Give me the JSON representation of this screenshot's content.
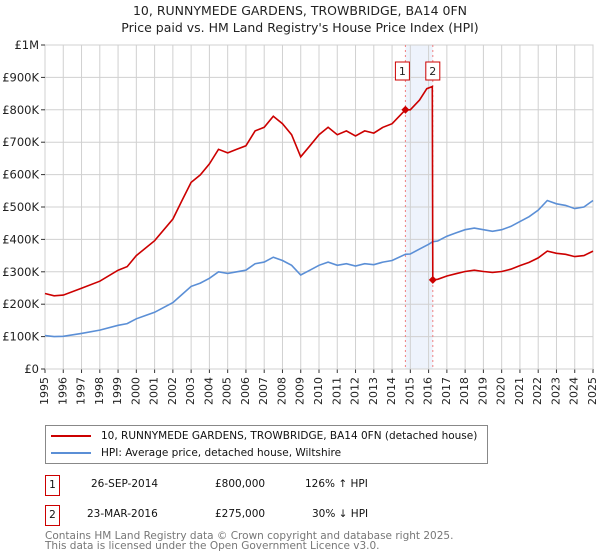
{
  "header": {
    "title_line1": "10, RUNNYMEDE GARDENS, TROWBRIDGE, BA14 0FN",
    "title_line2": "Price paid vs. HM Land Registry's House Price Index (HPI)"
  },
  "chart_data": {
    "type": "line",
    "title": "Price paid vs. HM Land Registry's House Price Index (HPI)",
    "xlim": [
      1995,
      2025
    ],
    "ylim": [
      0,
      1000000
    ],
    "x_ticks": [
      "1995",
      "1996",
      "1997",
      "1998",
      "1999",
      "2000",
      "2001",
      "2002",
      "2003",
      "2004",
      "2005",
      "2006",
      "2007",
      "2008",
      "2009",
      "2010",
      "2011",
      "2012",
      "2013",
      "2014",
      "2015",
      "2016",
      "2017",
      "2018",
      "2019",
      "2020",
      "2021",
      "2022",
      "2023",
      "2024",
      "2025"
    ],
    "y_ticks": [
      {
        "v": 0,
        "label": "£0"
      },
      {
        "v": 100000,
        "label": "£100K"
      },
      {
        "v": 200000,
        "label": "£200K"
      },
      {
        "v": 300000,
        "label": "£300K"
      },
      {
        "v": 400000,
        "label": "£400K"
      },
      {
        "v": 500000,
        "label": "£500K"
      },
      {
        "v": 600000,
        "label": "£600K"
      },
      {
        "v": 700000,
        "label": "£700K"
      },
      {
        "v": 800000,
        "label": "£800K"
      },
      {
        "v": 900000,
        "label": "£900K"
      },
      {
        "v": 1000000,
        "label": "£1M"
      }
    ],
    "grid": true,
    "series": [
      {
        "name": "10, RUNNYMEDE GARDENS, TROWBRIDGE, BA14 0FN (detached house)",
        "color": "#cc0000",
        "x": [
          1995,
          1995.5,
          1996,
          1997,
          1998,
          1999,
          1999.5,
          2000,
          2000.5,
          2001,
          2002,
          2002.5,
          2003,
          2003.5,
          2004,
          2004.5,
          2005,
          2005.5,
          2006,
          2006.5,
          2007,
          2007.5,
          2008,
          2008.5,
          2009,
          2009.5,
          2010,
          2010.5,
          2011,
          2011.5,
          2012,
          2012.5,
          2013,
          2013.5,
          2014,
          2014.73,
          2015,
          2015.5,
          2015.9,
          2016.2,
          2016.23,
          2016.5,
          2017,
          2017.5,
          2018,
          2018.5,
          2019,
          2019.5,
          2020,
          2020.5,
          2021,
          2021.5,
          2022,
          2022.5,
          2023,
          2023.5,
          2024,
          2024.5,
          2025
        ],
        "y": [
          233000,
          226000,
          228000,
          249000,
          271000,
          305000,
          316000,
          350000,
          373000,
          396000,
          463000,
          520000,
          576000,
          599000,
          633000,
          678000,
          667000,
          678000,
          689000,
          735000,
          746000,
          780000,
          757000,
          723000,
          655000,
          689000,
          723000,
          746000,
          723000,
          735000,
          719000,
          735000,
          728000,
          746000,
          757000,
          800000,
          800000,
          830000,
          865000,
          872000,
          275000,
          277000,
          287000,
          294000,
          301000,
          305000,
          301000,
          298000,
          301000,
          308000,
          319000,
          329000,
          343000,
          364000,
          357000,
          354000,
          347000,
          350000,
          364000
        ]
      },
      {
        "name": "HPI: Average price, detached house, Wiltshire",
        "color": "#5b8fd6",
        "x": [
          1995,
          1995.5,
          1996,
          1997,
          1998,
          1999,
          1999.5,
          2000,
          2000.5,
          2001,
          2002,
          2002.5,
          2003,
          2003.5,
          2004,
          2004.5,
          2005,
          2005.5,
          2006,
          2006.5,
          2007,
          2007.5,
          2008,
          2008.5,
          2009,
          2009.5,
          2010,
          2010.5,
          2011,
          2011.5,
          2012,
          2012.5,
          2013,
          2013.5,
          2014,
          2014.73,
          2015,
          2015.5,
          2016,
          2016.23,
          2016.5,
          2017,
          2017.5,
          2018,
          2018.5,
          2019,
          2019.5,
          2020,
          2020.5,
          2021,
          2021.5,
          2022,
          2022.5,
          2023,
          2023.5,
          2024,
          2024.5,
          2025
        ],
        "y": [
          103000,
          100000,
          101000,
          110000,
          120000,
          135000,
          140000,
          155000,
          165000,
          175000,
          205000,
          230000,
          255000,
          265000,
          280000,
          300000,
          295000,
          300000,
          305000,
          325000,
          330000,
          345000,
          335000,
          320000,
          290000,
          305000,
          320000,
          330000,
          320000,
          325000,
          318000,
          325000,
          322000,
          330000,
          335000,
          354000,
          355000,
          370000,
          385000,
          393000,
          395000,
          410000,
          420000,
          430000,
          435000,
          430000,
          425000,
          430000,
          440000,
          455000,
          470000,
          490000,
          520000,
          510000,
          505000,
          495000,
          500000,
          520000
        ]
      }
    ],
    "sales": [
      {
        "label": "1",
        "x": 2014.73,
        "y": 800000,
        "date": "26-SEP-2014",
        "price": "£800,000",
        "hpi": "126% ↑ HPI"
      },
      {
        "label": "2",
        "x": 2016.23,
        "y": 275000,
        "date": "23-MAR-2016",
        "price": "£275,000",
        "hpi": "30% ↓ HPI"
      }
    ],
    "legend_placement": "bottom"
  },
  "footer": {
    "line1": "Contains HM Land Registry data © Crown copyright and database right 2025.",
    "line2": "This data is licensed under the Open Government Licence v3.0."
  }
}
